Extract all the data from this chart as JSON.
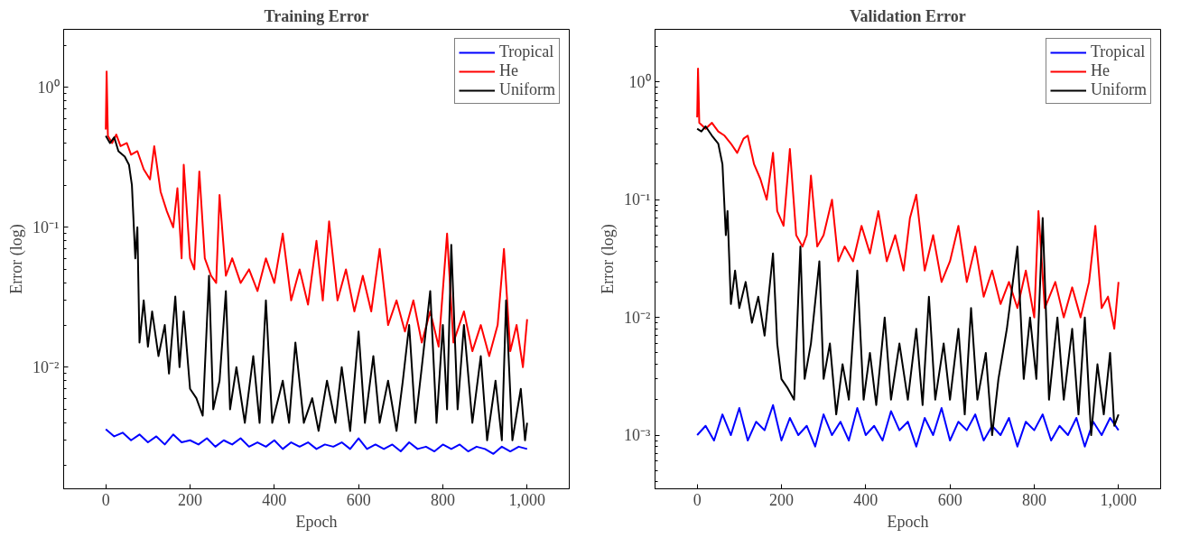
{
  "chart_data": [
    {
      "type": "line",
      "title": "Training Error",
      "xlabel": "Epoch",
      "ylabel": "Error (log)",
      "log": "y",
      "legend": "top right",
      "grid": false,
      "line_style": "solid",
      "marker": "none",
      "xlim": [
        -100,
        1100
      ],
      "xticks": [
        0,
        200,
        400,
        600,
        800,
        {
          "value": 1000,
          "label": "1,000"
        }
      ],
      "ylim": [
        0.00135,
        2.6
      ],
      "yticks": [
        {
          "value": 0.01,
          "label": "10⁻²"
        },
        {
          "value": 0.1,
          "label": "10⁻¹"
        },
        {
          "value": 1,
          "label": "10⁰"
        }
      ],
      "series": [
        {
          "name": "Tropical",
          "color": "#0000ff",
          "x": [
            0,
            20,
            40,
            60,
            80,
            100,
            120,
            140,
            160,
            180,
            200,
            220,
            240,
            260,
            280,
            300,
            320,
            340,
            360,
            380,
            400,
            420,
            440,
            460,
            480,
            500,
            520,
            540,
            560,
            580,
            600,
            620,
            640,
            660,
            680,
            700,
            720,
            740,
            760,
            780,
            800,
            820,
            840,
            860,
            880,
            900,
            920,
            940,
            960,
            980,
            1000
          ],
          "values": [
            0.0036,
            0.0032,
            0.0034,
            0.003,
            0.0033,
            0.0029,
            0.0032,
            0.0028,
            0.0033,
            0.0029,
            0.003,
            0.0028,
            0.0031,
            0.0027,
            0.003,
            0.0028,
            0.0031,
            0.0027,
            0.0029,
            0.0027,
            0.003,
            0.0026,
            0.0029,
            0.0027,
            0.0029,
            0.0026,
            0.0028,
            0.0027,
            0.0029,
            0.0026,
            0.0031,
            0.0026,
            0.0028,
            0.0026,
            0.0028,
            0.0025,
            0.0029,
            0.0026,
            0.0027,
            0.0025,
            0.0028,
            0.0026,
            0.0028,
            0.0025,
            0.0027,
            0.0026,
            0.0024,
            0.0027,
            0.0025,
            0.0027,
            0.0026
          ]
        },
        {
          "name": "He",
          "color": "#ff0000",
          "x": [
            0,
            2,
            5,
            15,
            25,
            35,
            50,
            60,
            75,
            90,
            105,
            115,
            130,
            145,
            160,
            170,
            180,
            185,
            200,
            210,
            222,
            235,
            250,
            262,
            270,
            285,
            300,
            320,
            340,
            360,
            380,
            400,
            420,
            440,
            460,
            480,
            500,
            515,
            530,
            550,
            570,
            590,
            610,
            630,
            650,
            670,
            690,
            710,
            730,
            750,
            770,
            790,
            810,
            825,
            850,
            870,
            890,
            910,
            930,
            945,
            960,
            975,
            990,
            1000
          ],
          "values": [
            0.5,
            1.3,
            0.45,
            0.4,
            0.46,
            0.38,
            0.4,
            0.33,
            0.35,
            0.26,
            0.22,
            0.38,
            0.18,
            0.13,
            0.1,
            0.19,
            0.06,
            0.28,
            0.06,
            0.05,
            0.25,
            0.06,
            0.045,
            0.04,
            0.17,
            0.045,
            0.06,
            0.04,
            0.05,
            0.035,
            0.06,
            0.04,
            0.09,
            0.03,
            0.05,
            0.028,
            0.08,
            0.03,
            0.11,
            0.03,
            0.05,
            0.025,
            0.045,
            0.025,
            0.07,
            0.02,
            0.03,
            0.018,
            0.03,
            0.015,
            0.025,
            0.014,
            0.09,
            0.015,
            0.025,
            0.013,
            0.02,
            0.012,
            0.02,
            0.07,
            0.013,
            0.02,
            0.01,
            0.022
          ]
        },
        {
          "name": "Uniform",
          "color": "#000000",
          "x": [
            0,
            10,
            20,
            30,
            45,
            55,
            62,
            70,
            75,
            80,
            90,
            100,
            110,
            125,
            140,
            150,
            165,
            175,
            185,
            200,
            215,
            230,
            245,
            255,
            270,
            285,
            295,
            310,
            330,
            350,
            365,
            380,
            395,
            420,
            435,
            450,
            470,
            490,
            505,
            525,
            545,
            560,
            580,
            600,
            615,
            635,
            650,
            670,
            690,
            705,
            720,
            735,
            750,
            770,
            785,
            800,
            810,
            820,
            835,
            850,
            870,
            890,
            905,
            925,
            940,
            950,
            965,
            985,
            995,
            1000
          ],
          "values": [
            0.45,
            0.4,
            0.44,
            0.35,
            0.32,
            0.28,
            0.2,
            0.06,
            0.1,
            0.015,
            0.03,
            0.014,
            0.025,
            0.012,
            0.02,
            0.009,
            0.032,
            0.01,
            0.025,
            0.007,
            0.006,
            0.0045,
            0.045,
            0.005,
            0.008,
            0.035,
            0.005,
            0.01,
            0.004,
            0.012,
            0.004,
            0.03,
            0.004,
            0.008,
            0.004,
            0.015,
            0.004,
            0.006,
            0.0035,
            0.008,
            0.004,
            0.01,
            0.0035,
            0.018,
            0.004,
            0.012,
            0.004,
            0.008,
            0.0035,
            0.008,
            0.02,
            0.004,
            0.01,
            0.035,
            0.004,
            0.02,
            0.005,
            0.075,
            0.005,
            0.02,
            0.004,
            0.012,
            0.003,
            0.008,
            0.003,
            0.03,
            0.003,
            0.007,
            0.003,
            0.004
          ]
        }
      ]
    },
    {
      "type": "line",
      "title": "Validation Error",
      "xlabel": "Epoch",
      "ylabel": "Error (log)",
      "log": "y",
      "legend": "top right",
      "grid": false,
      "line_style": "solid",
      "marker": "none",
      "xlim": [
        -100,
        1100
      ],
      "xticks": [
        0,
        200,
        400,
        600,
        800,
        {
          "value": 1000,
          "label": "1,000"
        }
      ],
      "ylim": [
        0.00035,
        2.8
      ],
      "yticks": [
        {
          "value": 0.001,
          "label": "10⁻³"
        },
        {
          "value": 0.01,
          "label": "10⁻²"
        },
        {
          "value": 0.1,
          "label": "10⁻¹"
        },
        {
          "value": 1,
          "label": "10⁰"
        }
      ],
      "series": [
        {
          "name": "Tropical",
          "color": "#0000ff",
          "x": [
            0,
            20,
            40,
            60,
            80,
            100,
            120,
            140,
            160,
            180,
            200,
            220,
            240,
            260,
            280,
            300,
            320,
            340,
            360,
            380,
            400,
            420,
            440,
            460,
            480,
            500,
            520,
            540,
            560,
            580,
            600,
            620,
            640,
            660,
            680,
            700,
            720,
            740,
            760,
            780,
            800,
            820,
            840,
            860,
            880,
            900,
            920,
            940,
            960,
            980,
            1000
          ],
          "values": [
            0.001,
            0.0012,
            0.0009,
            0.0015,
            0.001,
            0.0017,
            0.0009,
            0.0013,
            0.0011,
            0.0018,
            0.0009,
            0.0014,
            0.001,
            0.0012,
            0.0008,
            0.0015,
            0.001,
            0.0013,
            0.0009,
            0.0017,
            0.001,
            0.0012,
            0.0009,
            0.0016,
            0.0011,
            0.0013,
            0.0008,
            0.0014,
            0.001,
            0.0017,
            0.0009,
            0.0013,
            0.0011,
            0.0015,
            0.0009,
            0.0012,
            0.001,
            0.0014,
            0.0008,
            0.0013,
            0.0011,
            0.0015,
            0.0009,
            0.0012,
            0.001,
            0.0014,
            0.0008,
            0.0013,
            0.001,
            0.0014,
            0.0011
          ]
        },
        {
          "name": "He",
          "color": "#ff0000",
          "x": [
            0,
            2,
            5,
            20,
            35,
            50,
            65,
            80,
            95,
            110,
            120,
            135,
            150,
            165,
            180,
            190,
            205,
            220,
            235,
            250,
            260,
            270,
            285,
            300,
            320,
            335,
            350,
            370,
            390,
            410,
            430,
            450,
            470,
            490,
            505,
            520,
            540,
            560,
            580,
            600,
            620,
            640,
            660,
            680,
            700,
            720,
            740,
            760,
            780,
            800,
            810,
            825,
            850,
            870,
            890,
            910,
            930,
            945,
            960,
            975,
            990,
            1000
          ],
          "values": [
            0.5,
            1.3,
            0.45,
            0.4,
            0.45,
            0.38,
            0.35,
            0.3,
            0.25,
            0.33,
            0.35,
            0.2,
            0.15,
            0.1,
            0.25,
            0.08,
            0.06,
            0.27,
            0.05,
            0.04,
            0.05,
            0.16,
            0.04,
            0.05,
            0.1,
            0.03,
            0.04,
            0.03,
            0.06,
            0.035,
            0.08,
            0.03,
            0.05,
            0.025,
            0.07,
            0.11,
            0.025,
            0.05,
            0.02,
            0.03,
            0.06,
            0.02,
            0.04,
            0.015,
            0.025,
            0.013,
            0.02,
            0.012,
            0.025,
            0.01,
            0.08,
            0.012,
            0.02,
            0.01,
            0.018,
            0.01,
            0.02,
            0.06,
            0.012,
            0.015,
            0.008,
            0.02
          ]
        },
        {
          "name": "Uniform",
          "color": "#000000",
          "x": [
            0,
            10,
            20,
            35,
            50,
            60,
            68,
            72,
            80,
            90,
            100,
            115,
            130,
            145,
            160,
            180,
            190,
            200,
            215,
            230,
            245,
            255,
            270,
            290,
            300,
            315,
            330,
            345,
            360,
            380,
            395,
            410,
            425,
            445,
            460,
            480,
            500,
            520,
            535,
            550,
            565,
            585,
            600,
            620,
            635,
            650,
            665,
            685,
            700,
            715,
            735,
            760,
            775,
            790,
            805,
            820,
            835,
            855,
            870,
            890,
            905,
            920,
            935,
            950,
            965,
            980,
            990,
            1000
          ],
          "values": [
            0.4,
            0.38,
            0.42,
            0.35,
            0.3,
            0.2,
            0.05,
            0.08,
            0.013,
            0.025,
            0.012,
            0.02,
            0.009,
            0.015,
            0.007,
            0.035,
            0.006,
            0.003,
            0.0025,
            0.002,
            0.04,
            0.003,
            0.006,
            0.03,
            0.003,
            0.006,
            0.0015,
            0.004,
            0.002,
            0.025,
            0.002,
            0.005,
            0.0018,
            0.01,
            0.002,
            0.006,
            0.002,
            0.008,
            0.0018,
            0.015,
            0.002,
            0.006,
            0.002,
            0.008,
            0.0015,
            0.012,
            0.002,
            0.005,
            0.001,
            0.003,
            0.008,
            0.04,
            0.003,
            0.01,
            0.003,
            0.07,
            0.002,
            0.01,
            0.002,
            0.008,
            0.0015,
            0.01,
            0.001,
            0.004,
            0.0015,
            0.005,
            0.0012,
            0.0015
          ]
        }
      ]
    }
  ]
}
